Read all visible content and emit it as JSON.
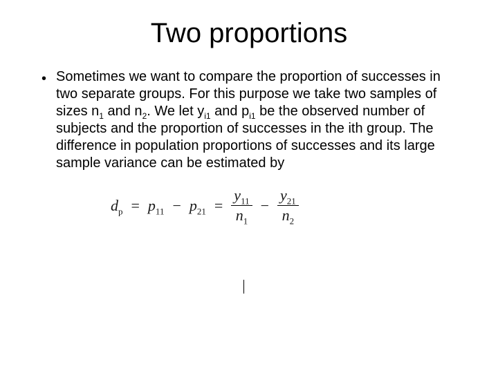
{
  "title": "Two proportions",
  "bullet": {
    "marker": "•",
    "text_parts": {
      "p1": "Sometimes we want to compare the proportion of successes in two separate groups. For this purpose we take two  samples of sizes n",
      "s1": "1",
      "p2": " and n",
      "s2": "2",
      "p3": ". We let y",
      "s3": "i1",
      "p4": " and p",
      "s4": "i1",
      "p5": " be the observed number of subjects and the proportion of successes in the ith group. The difference in population proportions of successes and its large sample variance can be estimated by"
    }
  },
  "equation": {
    "lhs_var": "d",
    "lhs_sub": "p",
    "eq": "=",
    "t1_var": "p",
    "t1_sub": "11",
    "minus": "−",
    "t2_var": "p",
    "t2_sub": "21",
    "f1_num_var": "y",
    "f1_num_sub": "11",
    "f1_den_var": "n",
    "f1_den_sub": "1",
    "f2_num_var": "y",
    "f2_num_sub": "21",
    "f2_den_var": "n",
    "f2_den_sub": "2"
  },
  "style": {
    "background_color": "#ffffff",
    "text_color": "#000000",
    "title_fontsize": 40,
    "body_fontsize": 20,
    "sub_fontsize": 12,
    "eq_fontsize": 22,
    "eq_sub_fontsize": 13,
    "slide_width": 720,
    "slide_height": 540
  }
}
